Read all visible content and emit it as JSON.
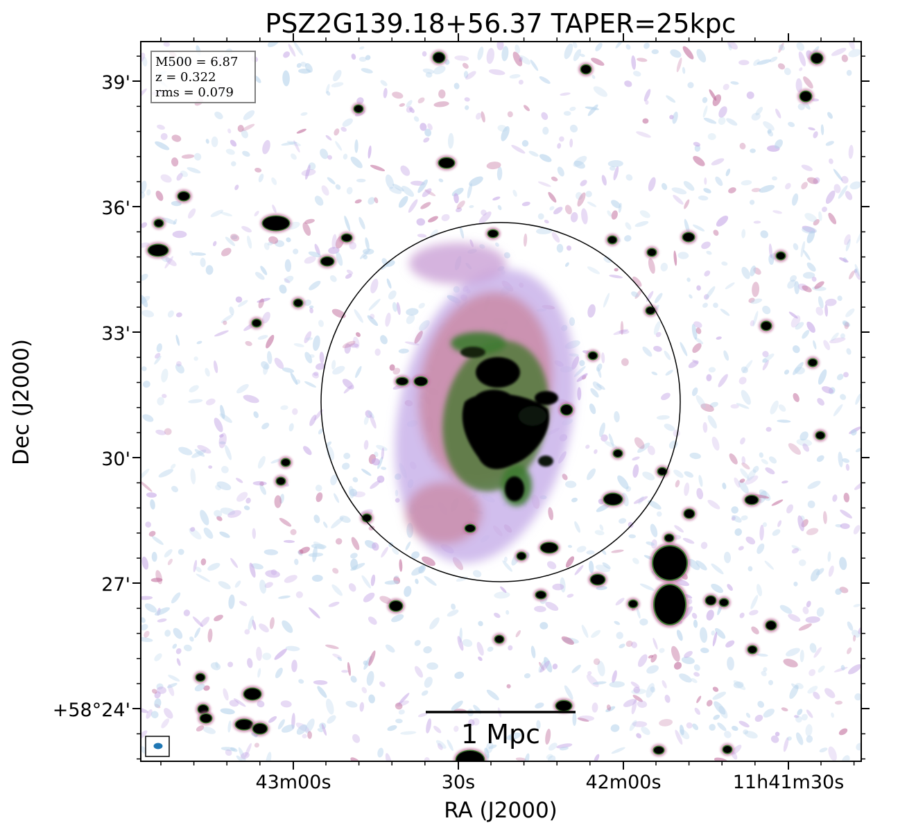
{
  "chart_data": {
    "type": "heatmap",
    "title": "PSZ2G139.18+56.37 TAPER=25kpc",
    "xlabel": "RA (J2000)",
    "ylabel": "Dec (J2000)",
    "x_ticks": [
      "43m00s",
      "30s",
      "42m00s",
      "11h41m30s"
    ],
    "y_ticks": [
      "39'",
      "36'",
      "33'",
      "30'",
      "27'",
      "+58°24'"
    ],
    "info_box": {
      "m500": "M500 = 6.87",
      "z": "z = 0.322",
      "rms": "rms = 0.079"
    },
    "scale_bar_label": "1 Mpc",
    "r500_circle": true,
    "beam_marker": true,
    "colormap": [
      "#ffffff",
      "#b8d4ec",
      "#c6a8e6",
      "#c2709e",
      "#3e7a32",
      "#000000"
    ]
  }
}
